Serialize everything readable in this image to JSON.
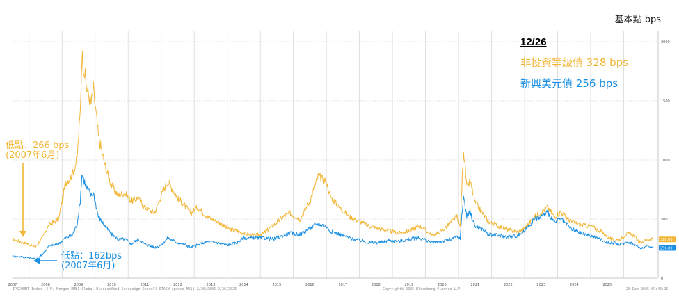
{
  "unit_label": "基本點 bps",
  "legend": {
    "date": "12/26",
    "series_hy": "非投資等級債 328 bps",
    "series_em": "新興美元債 256 bps"
  },
  "annotations": {
    "hy_low": [
      "低點：266 bps",
      "(2007年6月)"
    ],
    "em_low": [
      "低點：162bps",
      "(2007年6月)"
    ]
  },
  "footer": {
    "left": "IPSCOUNT Index (J.P. Morgan EMBI Global Diversified Sovereign Overall STASW spread MS)) 2/26/2006-2/26/2025",
    "middle": "Copyright© 2025 Bloomberg Finance L.P.",
    "right": "26-Dec-2025 09:45:25"
  },
  "colors": {
    "hy": "#f2b636",
    "em": "#1a8fe3",
    "grid": "#d8d8d8"
  },
  "chart_data": {
    "type": "line",
    "x_ticks": [
      "2007",
      "2008",
      "2009",
      "2010",
      "2011",
      "2012",
      "2013",
      "2014",
      "2015",
      "2016",
      "2017",
      "2018",
      "2019",
      "2020",
      "2021",
      "2022",
      "2023",
      "2024",
      "2025"
    ],
    "y_ticks": [
      0,
      500,
      1000,
      1500,
      2000
    ],
    "ylim": [
      0,
      2000
    ],
    "xlim": [
      2006.5,
      2026.0
    ],
    "series": [
      {
        "name": "非投資等級債",
        "color": "#f2b636",
        "last_value": 328,
        "end_tag": "328.00",
        "x": [
          2006.5,
          2006.9,
          2007.2,
          2007.4,
          2007.6,
          2007.9,
          2008.1,
          2008.3,
          2008.45,
          2008.55,
          2008.6,
          2008.75,
          2008.88,
          2008.95,
          2009.1,
          2009.3,
          2009.5,
          2009.7,
          2009.9,
          2010.1,
          2010.3,
          2010.5,
          2010.8,
          2011.0,
          2011.2,
          2011.5,
          2011.75,
          2011.9,
          2012.1,
          2012.4,
          2012.7,
          2013.0,
          2013.3,
          2013.5,
          2013.8,
          2014.1,
          2014.4,
          2014.7,
          2014.9,
          2015.2,
          2015.5,
          2015.75,
          2016.0,
          2016.1,
          2016.4,
          2016.7,
          2017.0,
          2017.3,
          2017.6,
          2017.9,
          2018.2,
          2018.5,
          2018.8,
          2018.95,
          2019.2,
          2019.5,
          2019.8,
          2019.95,
          2020.05,
          2020.15,
          2020.25,
          2020.35,
          2020.5,
          2020.7,
          2020.9,
          2021.2,
          2021.5,
          2021.8,
          2022.0,
          2022.3,
          2022.5,
          2022.7,
          2022.9,
          2023.1,
          2023.4,
          2023.7,
          2024.0,
          2024.3,
          2024.5,
          2024.7,
          2024.9,
          2025.1,
          2025.3,
          2025.5,
          2025.7,
          2025.9
        ],
        "y": [
          330,
          295,
          266,
          340,
          450,
          500,
          800,
          870,
          1000,
          1400,
          1900,
          1600,
          1480,
          1600,
          1200,
          950,
          780,
          700,
          720,
          650,
          680,
          600,
          550,
          700,
          820,
          680,
          600,
          550,
          600,
          520,
          480,
          420,
          400,
          380,
          360,
          380,
          450,
          520,
          550,
          500,
          650,
          860,
          820,
          700,
          600,
          520,
          480,
          440,
          420,
          400,
          380,
          400,
          440,
          420,
          360,
          400,
          480,
          520,
          430,
          1100,
          760,
          820,
          640,
          560,
          480,
          440,
          410,
          390,
          420,
          520,
          560,
          600,
          520,
          560,
          480,
          450,
          440,
          400,
          350,
          320,
          330,
          380,
          360,
          300,
          330,
          328
        ]
      },
      {
        "name": "新興美元債",
        "color": "#1a8fe3",
        "last_value": 256,
        "end_tag": "256.00",
        "x": [
          2006.5,
          2006.9,
          2007.2,
          2007.4,
          2007.6,
          2007.9,
          2008.1,
          2008.3,
          2008.45,
          2008.55,
          2008.6,
          2008.75,
          2008.88,
          2008.95,
          2009.1,
          2009.3,
          2009.5,
          2009.7,
          2009.9,
          2010.1,
          2010.3,
          2010.5,
          2010.8,
          2011.0,
          2011.2,
          2011.5,
          2011.75,
          2011.9,
          2012.1,
          2012.4,
          2012.7,
          2013.0,
          2013.3,
          2013.5,
          2013.8,
          2014.1,
          2014.4,
          2014.7,
          2014.9,
          2015.2,
          2015.5,
          2015.75,
          2016.0,
          2016.1,
          2016.4,
          2016.7,
          2017.0,
          2017.3,
          2017.6,
          2017.9,
          2018.2,
          2018.5,
          2018.8,
          2018.95,
          2019.2,
          2019.5,
          2019.8,
          2019.95,
          2020.05,
          2020.15,
          2020.25,
          2020.35,
          2020.5,
          2020.7,
          2020.9,
          2021.2,
          2021.5,
          2021.8,
          2022.0,
          2022.3,
          2022.5,
          2022.7,
          2022.9,
          2023.1,
          2023.4,
          2023.7,
          2024.0,
          2024.3,
          2024.5,
          2024.7,
          2024.9,
          2025.1,
          2025.3,
          2025.5,
          2025.7,
          2025.9
        ],
        "y": [
          185,
          178,
          162,
          200,
          270,
          290,
          340,
          360,
          450,
          650,
          880,
          760,
          700,
          720,
          520,
          440,
          370,
          330,
          330,
          290,
          330,
          290,
          260,
          280,
          340,
          300,
          280,
          260,
          280,
          310,
          300,
          280,
          300,
          340,
          340,
          340,
          330,
          360,
          380,
          370,
          420,
          460,
          440,
          400,
          370,
          340,
          320,
          300,
          300,
          320,
          310,
          330,
          340,
          330,
          300,
          310,
          330,
          350,
          340,
          700,
          520,
          560,
          440,
          420,
          370,
          360,
          350,
          360,
          400,
          500,
          520,
          560,
          470,
          500,
          420,
          380,
          360,
          330,
          300,
          300,
          280,
          310,
          290,
          250,
          270,
          256
        ]
      }
    ]
  }
}
